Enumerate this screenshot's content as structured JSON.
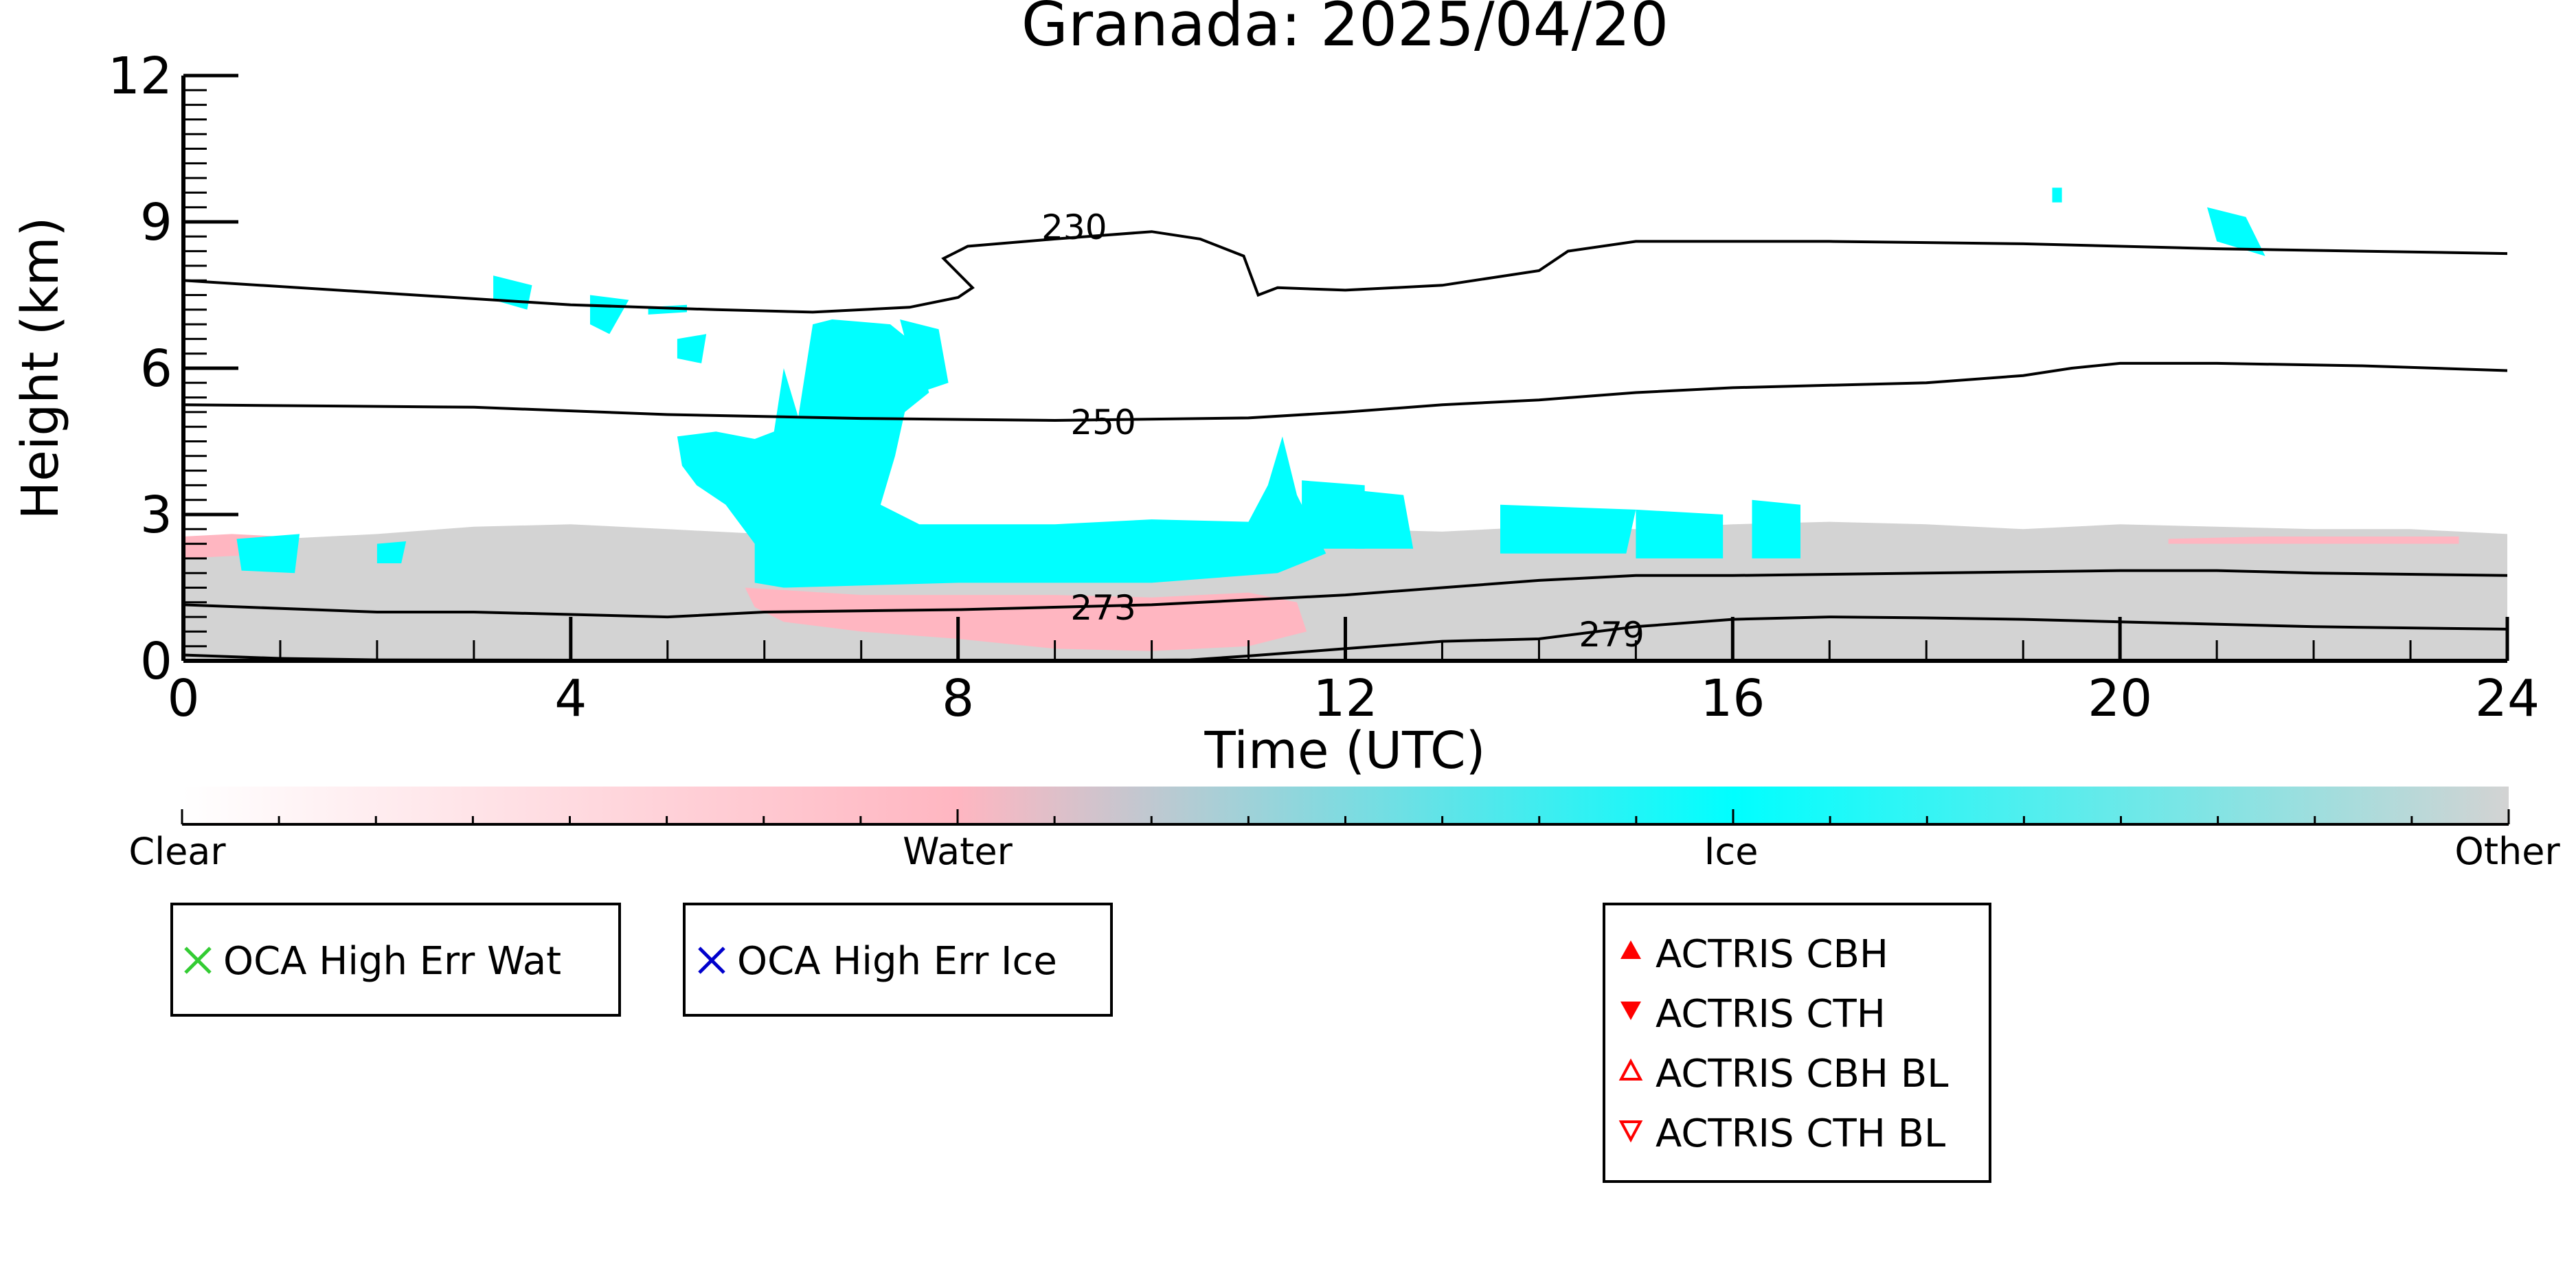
{
  "chart_data": {
    "type": "heatmap",
    "title": "Granada: 2025/04/20",
    "xlabel": "Time (UTC)",
    "ylabel": "Height (km)",
    "xlim": [
      0,
      24
    ],
    "ylim": [
      0,
      12
    ],
    "xticks": [
      0,
      4,
      8,
      12,
      16,
      20,
      24
    ],
    "yticks": [
      0,
      3,
      6,
      9,
      12
    ],
    "colorbar": {
      "labels": [
        {
          "text": "Clear",
          "pos": 0.0
        },
        {
          "text": "Water",
          "pos": 0.333
        },
        {
          "text": "Ice",
          "pos": 0.667
        },
        {
          "text": "Other",
          "pos": 1.0
        }
      ],
      "colors": {
        "clear": "#ffffff",
        "water": "#ffb6c1",
        "ice": "#00ffff",
        "other": "#d3d3d3"
      }
    },
    "contours": [
      {
        "label": "230",
        "label_at": [
          9.2,
          8.9
        ],
        "points": [
          [
            0,
            7.8
          ],
          [
            2,
            7.55
          ],
          [
            4,
            7.3
          ],
          [
            5.5,
            7.2
          ],
          [
            6.5,
            7.15
          ],
          [
            7.5,
            7.25
          ],
          [
            8,
            7.45
          ],
          [
            8.15,
            7.65
          ],
          [
            7.85,
            8.25
          ],
          [
            8.1,
            8.5
          ],
          [
            9,
            8.65
          ],
          [
            10,
            8.8
          ],
          [
            10.5,
            8.65
          ],
          [
            10.95,
            8.3
          ],
          [
            11.1,
            7.5
          ],
          [
            11.3,
            7.65
          ],
          [
            12,
            7.6
          ],
          [
            13,
            7.7
          ],
          [
            14,
            8.0
          ],
          [
            14.3,
            8.4
          ],
          [
            15,
            8.6
          ],
          [
            17,
            8.6
          ],
          [
            19,
            8.55
          ],
          [
            21,
            8.45
          ],
          [
            24,
            8.35
          ]
        ]
      },
      {
        "label": "250",
        "label_at": [
          9.5,
          4.9
        ],
        "points": [
          [
            0,
            5.25
          ],
          [
            3,
            5.2
          ],
          [
            5,
            5.05
          ],
          [
            7,
            4.97
          ],
          [
            9,
            4.93
          ],
          [
            11,
            4.98
          ],
          [
            12,
            5.1
          ],
          [
            13,
            5.25
          ],
          [
            14,
            5.35
          ],
          [
            15,
            5.5
          ],
          [
            16,
            5.6
          ],
          [
            17,
            5.65
          ],
          [
            18,
            5.7
          ],
          [
            19,
            5.85
          ],
          [
            19.5,
            6.0
          ],
          [
            20,
            6.1
          ],
          [
            21,
            6.1
          ],
          [
            22.5,
            6.05
          ],
          [
            24,
            5.95
          ]
        ]
      },
      {
        "label": "273",
        "label_at": [
          9.5,
          1.1
        ],
        "points": [
          [
            0,
            1.15
          ],
          [
            2,
            1.0
          ],
          [
            3,
            1.0
          ],
          [
            4,
            0.95
          ],
          [
            5,
            0.9
          ],
          [
            6,
            1.0
          ],
          [
            8,
            1.05
          ],
          [
            10,
            1.15
          ],
          [
            11,
            1.25
          ],
          [
            12,
            1.35
          ],
          [
            13,
            1.5
          ],
          [
            14,
            1.65
          ],
          [
            15,
            1.75
          ],
          [
            16,
            1.75
          ],
          [
            18,
            1.8
          ],
          [
            20,
            1.85
          ],
          [
            21,
            1.85
          ],
          [
            22,
            1.8
          ],
          [
            24,
            1.75
          ]
        ]
      },
      {
        "label": "279",
        "label_at": [
          14.75,
          0.55
        ],
        "points": [
          [
            0,
            0.12
          ],
          [
            1,
            0.05
          ],
          [
            2,
            0.02
          ],
          [
            9,
            0.0
          ],
          [
            10.4,
            0.02
          ],
          [
            11,
            0.1
          ],
          [
            12,
            0.25
          ],
          [
            13,
            0.4
          ],
          [
            14,
            0.45
          ],
          [
            15,
            0.7
          ],
          [
            16,
            0.85
          ],
          [
            17,
            0.9
          ],
          [
            18,
            0.88
          ],
          [
            19,
            0.85
          ],
          [
            20,
            0.8
          ],
          [
            22,
            0.7
          ],
          [
            24,
            0.65
          ]
        ]
      }
    ],
    "regions": [
      {
        "class": "other",
        "color": "#d3d3d3",
        "points": [
          [
            0,
            2.4
          ],
          [
            1,
            2.5
          ],
          [
            2,
            2.6
          ],
          [
            3,
            2.75
          ],
          [
            4,
            2.8
          ],
          [
            5,
            2.7
          ],
          [
            6,
            2.6
          ],
          [
            8,
            2.5
          ],
          [
            10,
            2.55
          ],
          [
            11,
            2.65
          ],
          [
            12,
            2.7
          ],
          [
            13,
            2.65
          ],
          [
            14,
            2.75
          ],
          [
            15,
            2.7
          ],
          [
            16,
            2.8
          ],
          [
            17,
            2.85
          ],
          [
            18,
            2.8
          ],
          [
            19,
            2.7
          ],
          [
            20,
            2.8
          ],
          [
            21,
            2.75
          ],
          [
            22,
            2.7
          ],
          [
            23,
            2.7
          ],
          [
            24,
            2.6
          ],
          [
            24,
            0
          ],
          [
            0,
            0
          ]
        ]
      },
      {
        "class": "water",
        "color": "#ffb6c1",
        "points": [
          [
            5.8,
            1.5
          ],
          [
            7,
            1.35
          ],
          [
            8,
            1.35
          ],
          [
            9,
            1.35
          ],
          [
            10,
            1.3
          ],
          [
            11,
            1.4
          ],
          [
            11.5,
            1.2
          ],
          [
            11.6,
            0.6
          ],
          [
            11,
            0.3
          ],
          [
            10,
            0.2
          ],
          [
            9,
            0.25
          ],
          [
            8,
            0.45
          ],
          [
            7,
            0.6
          ],
          [
            6.2,
            0.8
          ],
          [
            5.9,
            1.1
          ]
        ]
      },
      {
        "class": "water",
        "color": "#ffb6c1",
        "points": [
          [
            0,
            2.55
          ],
          [
            0.5,
            2.6
          ],
          [
            1,
            2.55
          ],
          [
            1,
            2.2
          ],
          [
            0,
            2.1
          ]
        ]
      },
      {
        "class": "water",
        "color": "#ffb6c1",
        "points": [
          [
            20.5,
            2.5
          ],
          [
            21.5,
            2.55
          ],
          [
            22.5,
            2.55
          ],
          [
            23.5,
            2.55
          ],
          [
            23.5,
            2.4
          ],
          [
            20.5,
            2.4
          ]
        ]
      },
      {
        "class": "ice",
        "color": "#00ffff",
        "points": [
          [
            5.1,
            4.6
          ],
          [
            5.5,
            4.7
          ],
          [
            5.9,
            4.55
          ],
          [
            6.1,
            4.7
          ],
          [
            6.2,
            6.0
          ],
          [
            6.35,
            5.0
          ],
          [
            6.5,
            6.9
          ],
          [
            6.7,
            7.0
          ],
          [
            7.0,
            6.95
          ],
          [
            7.3,
            6.9
          ],
          [
            7.55,
            6.5
          ],
          [
            7.7,
            5.5
          ],
          [
            7.45,
            5.1
          ],
          [
            7.35,
            4.2
          ],
          [
            7.2,
            3.2
          ],
          [
            7.6,
            2.8
          ],
          [
            9,
            2.8
          ],
          [
            10,
            2.9
          ],
          [
            11,
            2.85
          ],
          [
            11.2,
            3.6
          ],
          [
            11.35,
            4.6
          ],
          [
            11.5,
            3.4
          ],
          [
            11.8,
            2.2
          ],
          [
            11.3,
            1.8
          ],
          [
            10,
            1.6
          ],
          [
            8,
            1.6
          ],
          [
            6.2,
            1.5
          ],
          [
            5.9,
            1.6
          ],
          [
            5.9,
            2.4
          ],
          [
            5.6,
            3.2
          ],
          [
            5.3,
            3.6
          ],
          [
            5.15,
            4.0
          ]
        ]
      },
      {
        "class": "ice",
        "color": "#00ffff",
        "points": [
          [
            7.4,
            7.0
          ],
          [
            7.8,
            6.8
          ],
          [
            7.9,
            5.7
          ],
          [
            7.6,
            5.5
          ]
        ]
      },
      {
        "class": "ice",
        "color": "#00ffff",
        "points": [
          [
            11.55,
            3.7
          ],
          [
            12.2,
            3.6
          ],
          [
            12.2,
            2.3
          ],
          [
            11.55,
            2.3
          ]
        ]
      },
      {
        "class": "ice",
        "color": "#00ffff",
        "points": [
          [
            12.1,
            3.5
          ],
          [
            12.6,
            3.4
          ],
          [
            12.7,
            2.3
          ],
          [
            12.1,
            2.3
          ]
        ]
      },
      {
        "class": "ice",
        "color": "#00ffff",
        "points": [
          [
            13.6,
            3.2
          ],
          [
            15,
            3.1
          ],
          [
            14.9,
            2.2
          ],
          [
            13.6,
            2.2
          ]
        ]
      },
      {
        "class": "ice",
        "color": "#00ffff",
        "points": [
          [
            15,
            3.1
          ],
          [
            15.9,
            3.0
          ],
          [
            15.9,
            2.1
          ],
          [
            15,
            2.1
          ]
        ]
      },
      {
        "class": "ice",
        "color": "#00ffff",
        "points": [
          [
            16.2,
            3.3
          ],
          [
            16.7,
            3.2
          ],
          [
            16.7,
            2.1
          ],
          [
            16.2,
            2.1
          ]
        ]
      },
      {
        "class": "ice",
        "color": "#00ffff",
        "points": [
          [
            0.55,
            2.5
          ],
          [
            1.2,
            2.6
          ],
          [
            1.15,
            1.8
          ],
          [
            0.6,
            1.85
          ]
        ]
      },
      {
        "class": "ice",
        "color": "#00ffff",
        "points": [
          [
            2.0,
            2.4
          ],
          [
            2.3,
            2.45
          ],
          [
            2.25,
            2.0
          ],
          [
            2.0,
            2.0
          ]
        ]
      },
      {
        "class": "ice",
        "color": "#00ffff",
        "points": [
          [
            3.2,
            7.9
          ],
          [
            3.6,
            7.7
          ],
          [
            3.55,
            7.2
          ],
          [
            3.2,
            7.4
          ]
        ]
      },
      {
        "class": "ice",
        "color": "#00ffff",
        "points": [
          [
            4.2,
            7.5
          ],
          [
            4.6,
            7.4
          ],
          [
            4.4,
            6.7
          ],
          [
            4.2,
            6.9
          ]
        ]
      },
      {
        "class": "ice",
        "color": "#00ffff",
        "points": [
          [
            4.8,
            7.25
          ],
          [
            5.2,
            7.3
          ],
          [
            5.2,
            7.15
          ],
          [
            4.8,
            7.1
          ]
        ]
      },
      {
        "class": "ice",
        "color": "#00ffff",
        "points": [
          [
            5.1,
            6.6
          ],
          [
            5.4,
            6.7
          ],
          [
            5.35,
            6.1
          ],
          [
            5.1,
            6.2
          ]
        ]
      },
      {
        "class": "ice",
        "color": "#00ffff",
        "points": [
          [
            20.9,
            9.3
          ],
          [
            21.3,
            9.1
          ],
          [
            21.5,
            8.3
          ],
          [
            21.0,
            8.6
          ]
        ]
      },
      {
        "class": "ice",
        "color": "#00ffff",
        "points": [
          [
            19.3,
            9.7
          ],
          [
            19.4,
            9.7
          ],
          [
            19.4,
            9.4
          ],
          [
            19.3,
            9.4
          ]
        ]
      }
    ]
  },
  "legends": {
    "oca_wat": {
      "label": "OCA High Err Wat",
      "marker": "x-icon",
      "color": "#33cc33"
    },
    "oca_ice": {
      "label": "OCA High Err Ice",
      "marker": "x-icon",
      "color": "#0000cc"
    },
    "actris": [
      {
        "label": "ACTRIS CBH",
        "marker": "filled-triangle-up-icon",
        "color": "#ff0000"
      },
      {
        "label": "ACTRIS CTH",
        "marker": "filled-triangle-down-icon",
        "color": "#ff0000"
      },
      {
        "label": "ACTRIS CBH BL",
        "marker": "open-triangle-up-icon",
        "color": "#ff0000"
      },
      {
        "label": "ACTRIS CTH BL",
        "marker": "open-triangle-down-icon",
        "color": "#ff0000"
      }
    ]
  }
}
